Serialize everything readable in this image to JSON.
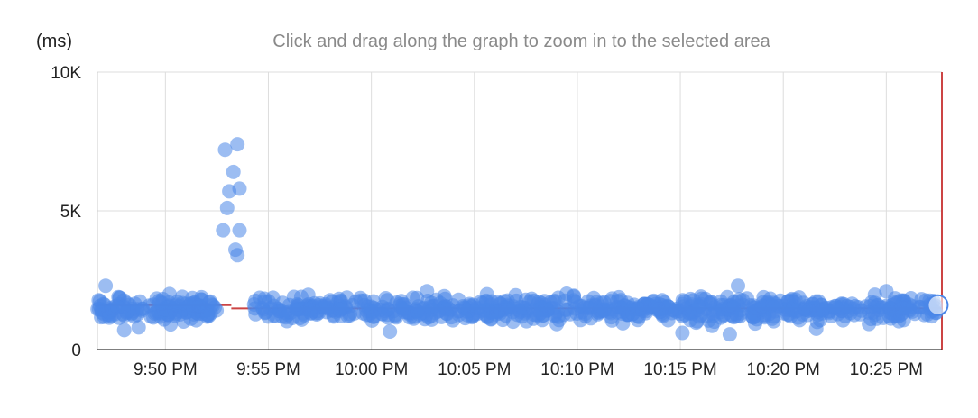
{
  "chart_data": {
    "type": "scatter",
    "unit_label": "(ms)",
    "hint": "Click and drag along the graph to zoom in to the selected area",
    "x_tick_labels": [
      "9:50 PM",
      "9:55 PM",
      "10:00 PM",
      "10:05 PM",
      "10:10 PM",
      "10:15 PM",
      "10:20 PM",
      "10:25 PM"
    ],
    "x_tick_minutes": [
      50,
      55,
      60,
      65,
      70,
      75,
      80,
      85
    ],
    "xlim_minutes": [
      46.7,
      87.7
    ],
    "ylim": [
      0,
      10000
    ],
    "y_ticks": [
      0,
      5000,
      10000
    ],
    "y_tick_labels": [
      "0",
      "5K",
      "10K"
    ],
    "grid": true,
    "series_color": "#4a86e8",
    "threshold_color": "#cc4444",
    "threshold": [
      {
        "start_minute": 46.7,
        "end_minute": 53.2,
        "value": 1600
      },
      {
        "start_minute": 53.2,
        "end_minute": 87.7,
        "value": 1480
      }
    ],
    "outliers": [
      {
        "minute": 52.9,
        "value": 7200
      },
      {
        "minute": 53.5,
        "value": 7400
      },
      {
        "minute": 53.3,
        "value": 6400
      },
      {
        "minute": 53.1,
        "value": 5700
      },
      {
        "minute": 53.6,
        "value": 5800
      },
      {
        "minute": 53.0,
        "value": 5100
      },
      {
        "minute": 52.8,
        "value": 4300
      },
      {
        "minute": 53.6,
        "value": 4300
      },
      {
        "minute": 53.4,
        "value": 3600
      },
      {
        "minute": 53.5,
        "value": 3400
      }
    ],
    "low_points": [
      {
        "minute": 48.0,
        "value": 700
      },
      {
        "minute": 48.7,
        "value": 800
      },
      {
        "minute": 60.9,
        "value": 650
      },
      {
        "minute": 75.1,
        "value": 600
      },
      {
        "minute": 77.4,
        "value": 550
      },
      {
        "minute": 81.6,
        "value": 750
      }
    ],
    "high_points": [
      {
        "minute": 47.1,
        "value": 2300
      },
      {
        "minute": 50.2,
        "value": 2000
      },
      {
        "minute": 62.7,
        "value": 2100
      },
      {
        "minute": 77.8,
        "value": 2300
      },
      {
        "minute": 85.0,
        "value": 2100
      }
    ],
    "baseline": {
      "start_minute": 46.7,
      "end_minute": 87.5,
      "center": 1450,
      "spread": 300,
      "gap_start": 52.5,
      "gap_end": 54.3,
      "density_per_minute": 22
    },
    "selection_marker": {
      "minute": 87.5,
      "value": 1600
    }
  }
}
